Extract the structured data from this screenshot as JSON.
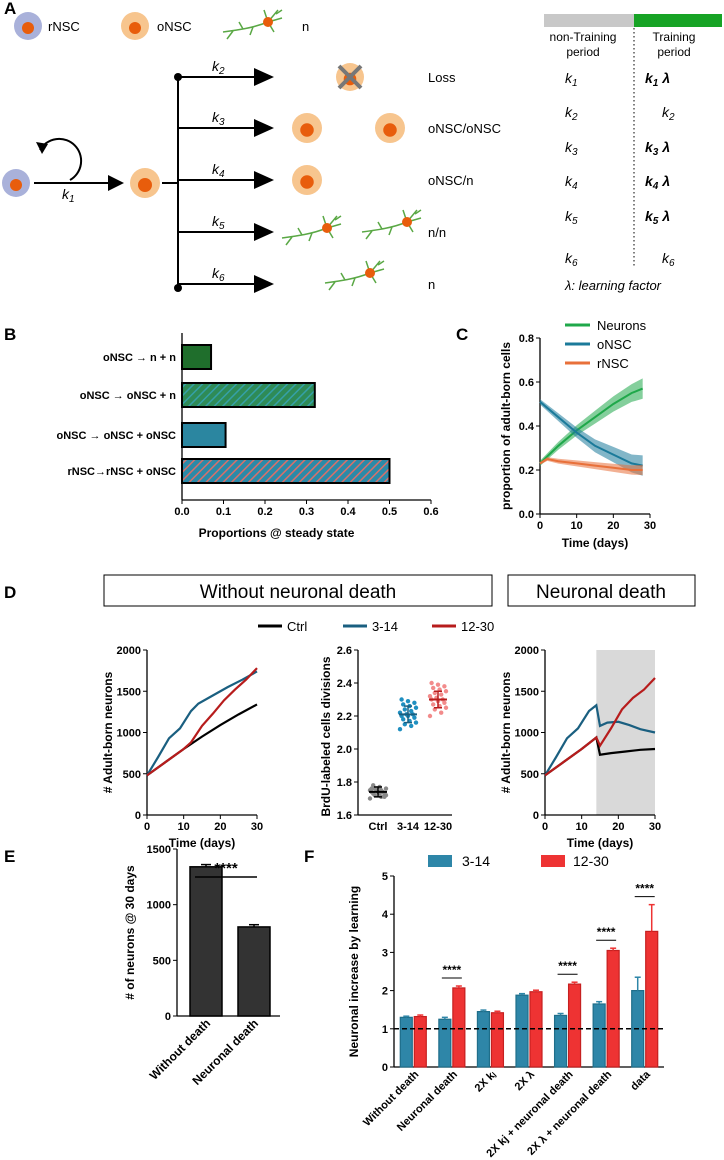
{
  "panels": {
    "a": "A",
    "b": "B",
    "c": "C",
    "d": "D",
    "e": "E",
    "f": "F"
  },
  "colors": {
    "neurons": "#1fa84a",
    "onsc": "#1b7a9a",
    "rnsc": "#e8703a",
    "ctrl": "#000000",
    "c314": "#1a5f80",
    "c1230": "#b71c1c",
    "f314": "#2e86a8",
    "f1230": "#ee3333",
    "loss": "#777777",
    "cell_onsc": "#f7c58e",
    "cell_rnsc": "#a9b1da",
    "nucleus": "#e85d0c",
    "neuron": "#5aa845"
  },
  "schema": {
    "legend": {
      "rnsc": "rNSC",
      "onsc": "oNSC",
      "n": "n"
    },
    "k1_label": "k",
    "k1_sub": "1",
    "reactions": [
      {
        "k": "k",
        "sub": "2",
        "outcome": "Loss"
      },
      {
        "k": "k",
        "sub": "3",
        "outcome": "oNSC/oNSC"
      },
      {
        "k": "k",
        "sub": "4",
        "outcome": "oNSC/n"
      },
      {
        "k": "k",
        "sub": "5",
        "outcome": "n/n"
      },
      {
        "k": "k",
        "sub": "6",
        "outcome": "n"
      }
    ]
  },
  "table": {
    "header_left": [
      "non-Training",
      "period"
    ],
    "header_right": [
      "Training",
      "period"
    ],
    "rows": [
      {
        "k": "k",
        "sub": "1",
        "train": "k",
        "tsub": "1",
        "lambda": "λ",
        "bold": true
      },
      {
        "k": "k",
        "sub": "2",
        "train": "k",
        "tsub": "2",
        "lambda": "",
        "bold": false
      },
      {
        "k": "k",
        "sub": "3",
        "train": "k",
        "tsub": "3",
        "lambda": "λ",
        "bold": true
      },
      {
        "k": "k",
        "sub": "4",
        "train": "k",
        "tsub": "4",
        "lambda": "λ",
        "bold": true
      },
      {
        "k": "k",
        "sub": "5",
        "train": "k",
        "tsub": "5",
        "lambda": "λ",
        "bold": true
      },
      {
        "k": "k",
        "sub": "6",
        "train": "k",
        "tsub": "6",
        "lambda": "",
        "bold": false
      }
    ],
    "footnote": "λ: learning factor"
  },
  "boxes": {
    "without": "Without neuronal death",
    "death": "Neuronal death"
  },
  "legend_d": [
    "Ctrl",
    "3-14",
    "12-30"
  ],
  "legend_f": [
    "3-14",
    "12-30"
  ],
  "chart_data": [
    {
      "id": "B",
      "type": "bar",
      "orientation": "horizontal",
      "categories": [
        "oNSC → n + n",
        "oNSC → oNSC + n",
        "oNSC → oNSC + oNSC",
        "rNSC→rNSC + oNSC"
      ],
      "values": [
        0.07,
        0.32,
        0.105,
        0.5
      ],
      "xlabel": "Proportions @ steady state",
      "xlim": [
        0,
        0.6
      ],
      "xticks": [
        "0.0",
        "0.1",
        "0.2",
        "0.3",
        "0.4",
        "0.5",
        "0.6"
      ]
    },
    {
      "id": "C",
      "type": "line",
      "ylabel": "proportion of adult-born cells",
      "xlabel": "Time (days)",
      "xlim": [
        0,
        30
      ],
      "ylim": [
        0,
        0.8
      ],
      "xticks": [
        "0",
        "10",
        "20",
        "30"
      ],
      "yticks": [
        "0.0",
        "0.2",
        "0.4",
        "0.6",
        "0.8"
      ],
      "series": [
        {
          "name": "Neurons",
          "x": [
            0,
            5,
            10,
            15,
            20,
            25,
            28
          ],
          "y": [
            0.23,
            0.31,
            0.38,
            0.44,
            0.5,
            0.55,
            0.57
          ],
          "band": 0.04
        },
        {
          "name": "oNSC",
          "x": [
            0,
            5,
            10,
            15,
            20,
            25,
            28
          ],
          "y": [
            0.51,
            0.44,
            0.37,
            0.31,
            0.27,
            0.23,
            0.22
          ],
          "band": 0.04
        },
        {
          "name": "rNSC",
          "x": [
            0,
            2,
            5,
            10,
            15,
            20,
            25,
            28
          ],
          "y": [
            0.23,
            0.25,
            0.24,
            0.23,
            0.22,
            0.21,
            0.2,
            0.2
          ],
          "band": 0.02
        }
      ]
    },
    {
      "id": "D1",
      "type": "line",
      "ylabel": "# Adult-born neurons",
      "xlabel": "Time (days)",
      "xlim": [
        0,
        30
      ],
      "ylim": [
        0,
        2000
      ],
      "xticks": [
        "0",
        "10",
        "20",
        "30"
      ],
      "yticks": [
        "0",
        "500",
        "1000",
        "1500",
        "2000"
      ],
      "series": [
        {
          "name": "Ctrl",
          "x": [
            0,
            5,
            10,
            15,
            20,
            25,
            30
          ],
          "y": [
            480,
            640,
            800,
            950,
            1090,
            1220,
            1340
          ]
        },
        {
          "name": "3-14",
          "x": [
            0,
            3,
            6,
            9,
            12,
            14,
            18,
            22,
            26,
            30
          ],
          "y": [
            480,
            700,
            930,
            1050,
            1260,
            1350,
            1450,
            1550,
            1640,
            1740
          ]
        },
        {
          "name": "12-30",
          "x": [
            0,
            5,
            10,
            12,
            15,
            18,
            21,
            24,
            27,
            30
          ],
          "y": [
            480,
            640,
            800,
            880,
            1080,
            1230,
            1390,
            1520,
            1640,
            1780
          ]
        }
      ]
    },
    {
      "id": "D2",
      "type": "scatter",
      "ylabel": "BrdU-labeled cells divisions",
      "categories": [
        "Ctrl",
        "3-14",
        "12-30"
      ],
      "means": [
        1.74,
        2.21,
        2.3
      ],
      "sd": [
        0.03,
        0.05,
        0.05
      ],
      "ylim": [
        1.6,
        2.6
      ],
      "yticks": [
        "1.6",
        "1.8",
        "2.0",
        "2.2",
        "2.4",
        "2.6"
      ],
      "points": [
        [
          1.7,
          1.71,
          1.72,
          1.72,
          1.73,
          1.73,
          1.73,
          1.74,
          1.74,
          1.74,
          1.75,
          1.75,
          1.75,
          1.76,
          1.76,
          1.77,
          1.78,
          1.71,
          1.74,
          1.76
        ],
        [
          2.12,
          2.14,
          2.15,
          2.16,
          2.17,
          2.18,
          2.19,
          2.2,
          2.2,
          2.21,
          2.21,
          2.22,
          2.23,
          2.24,
          2.25,
          2.26,
          2.27,
          2.28,
          2.29,
          2.3
        ],
        [
          2.2,
          2.22,
          2.24,
          2.25,
          2.26,
          2.27,
          2.28,
          2.29,
          2.3,
          2.3,
          2.31,
          2.32,
          2.33,
          2.34,
          2.35,
          2.36,
          2.37,
          2.38,
          2.39,
          2.4
        ]
      ]
    },
    {
      "id": "D3",
      "type": "line",
      "ylabel": "# Adult-born neurons",
      "xlabel": "Time (days)",
      "xlim": [
        0,
        30
      ],
      "ylim": [
        0,
        2000
      ],
      "xticks": [
        "0",
        "10",
        "20",
        "30"
      ],
      "yticks": [
        "0",
        "500",
        "1000",
        "1500",
        "2000"
      ],
      "shaded_x": [
        14,
        30
      ],
      "series": [
        {
          "name": "Ctrl",
          "x": [
            0,
            5,
            10,
            14,
            15,
            18,
            22,
            26,
            30
          ],
          "y": [
            480,
            640,
            800,
            940,
            730,
            750,
            770,
            790,
            800
          ]
        },
        {
          "name": "3-14",
          "x": [
            0,
            3,
            6,
            9,
            12,
            14,
            15,
            17,
            20,
            23,
            26,
            30
          ],
          "y": [
            480,
            700,
            930,
            1050,
            1260,
            1330,
            1080,
            1120,
            1130,
            1090,
            1040,
            1000
          ]
        },
        {
          "name": "12-30",
          "x": [
            0,
            5,
            10,
            14,
            15,
            18,
            21,
            24,
            27,
            30
          ],
          "y": [
            480,
            640,
            800,
            940,
            840,
            1050,
            1280,
            1420,
            1520,
            1660
          ]
        }
      ]
    },
    {
      "id": "E",
      "type": "bar",
      "ylabel": "# of neurons @ 30 days",
      "categories": [
        "Without death",
        "Neuronal death"
      ],
      "values": [
        1340,
        800
      ],
      "errors": [
        20,
        20
      ],
      "ylim": [
        0,
        1500
      ],
      "yticks": [
        "0",
        "500",
        "1000",
        "1500"
      ],
      "significance": "****"
    },
    {
      "id": "F",
      "type": "bar",
      "ylabel": "Neuronal increase by learning",
      "categories": [
        "Without death",
        "Neuronal death",
        "2X kⱼ",
        "2X λ",
        "2X kj + neuronal death",
        "2X λ + neuronal death",
        "data"
      ],
      "series": [
        {
          "name": "3-14",
          "values": [
            1.3,
            1.25,
            1.45,
            1.88,
            1.35,
            1.65,
            2.0
          ],
          "errors": [
            0.03,
            0.05,
            0.04,
            0.04,
            0.05,
            0.06,
            0.35
          ]
        },
        {
          "name": "12-30",
          "values": [
            1.32,
            2.07,
            1.42,
            1.97,
            2.17,
            3.05,
            3.55
          ],
          "errors": [
            0.04,
            0.05,
            0.04,
            0.04,
            0.05,
            0.06,
            0.7
          ]
        }
      ],
      "ylim": [
        0,
        5
      ],
      "yticks": [
        "0",
        "1",
        "2",
        "3",
        "4",
        "5"
      ],
      "reference_line": 1,
      "significance": [
        "",
        "****",
        "",
        "",
        "****",
        "****",
        "****"
      ]
    }
  ]
}
